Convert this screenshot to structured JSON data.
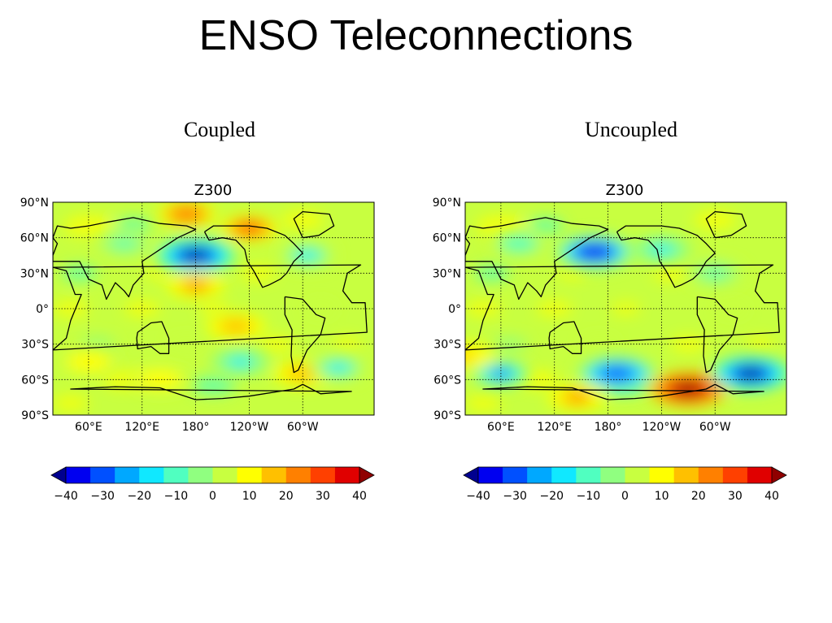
{
  "slide_title": "ENSO Teleconnections",
  "panels": [
    {
      "caption": "Coupled",
      "plot_title": "Z300",
      "lat_labels": [
        "90°N",
        "60°N",
        "30°N",
        "0°",
        "30°S",
        "60°S",
        "90°S"
      ],
      "lon_labels": [
        "60°E",
        "120°E",
        "180°",
        "120°W",
        "60°W"
      ],
      "anomalies": [
        {
          "lon": 180,
          "lat": 45,
          "value": -38
        },
        {
          "lon": 170,
          "lat": 80,
          "value": 22
        },
        {
          "lon": 240,
          "lat": 68,
          "value": 24
        },
        {
          "lon": 180,
          "lat": 20,
          "value": 18
        },
        {
          "lon": 225,
          "lat": -15,
          "value": 16
        },
        {
          "lon": 305,
          "lat": 45,
          "value": -12
        },
        {
          "lon": 230,
          "lat": -45,
          "value": -14
        },
        {
          "lon": 300,
          "lat": -55,
          "value": 16
        },
        {
          "lon": 340,
          "lat": -50,
          "value": -12
        },
        {
          "lon": 100,
          "lat": 55,
          "value": -8
        },
        {
          "lon": 60,
          "lat": -45,
          "value": 8
        },
        {
          "lon": 140,
          "lat": -60,
          "value": 8
        }
      ]
    },
    {
      "caption": "Uncoupled",
      "plot_title": "Z300",
      "lat_labels": [
        "90°N",
        "60°N",
        "30°N",
        "0°",
        "30°S",
        "60°S",
        "90°S"
      ],
      "lon_labels": [
        "60°E",
        "120°E",
        "180°",
        "120°W",
        "60°W"
      ],
      "anomalies": [
        {
          "lon": 165,
          "lat": 48,
          "value": -32
        },
        {
          "lon": 240,
          "lat": 50,
          "value": -14
        },
        {
          "lon": 270,
          "lat": -68,
          "value": 40
        },
        {
          "lon": 190,
          "lat": -55,
          "value": -28
        },
        {
          "lon": 340,
          "lat": -55,
          "value": -36
        },
        {
          "lon": 60,
          "lat": -55,
          "value": -24
        },
        {
          "lon": 145,
          "lat": -75,
          "value": 18
        },
        {
          "lon": 20,
          "lat": -40,
          "value": 12
        },
        {
          "lon": 300,
          "lat": 30,
          "value": -8
        },
        {
          "lon": 80,
          "lat": 55,
          "value": -10
        }
      ]
    }
  ],
  "colorbar": {
    "ticks": [
      "−40",
      "−30",
      "−20",
      "−10",
      "0",
      "10",
      "20",
      "30",
      "40"
    ],
    "range": [
      -40,
      40
    ],
    "levels": 18,
    "extend": "both",
    "colormap": [
      "#00008f",
      "#0000f0",
      "#0050ff",
      "#00a8ff",
      "#10e8ff",
      "#50ffc0",
      "#90ff80",
      "#c8ff40",
      "#ffff00",
      "#ffc000",
      "#ff8000",
      "#ff4000",
      "#e00000",
      "#900000"
    ]
  },
  "map_style": {
    "background_value": 4,
    "gridlines": "dotted",
    "coastlines": "black"
  }
}
